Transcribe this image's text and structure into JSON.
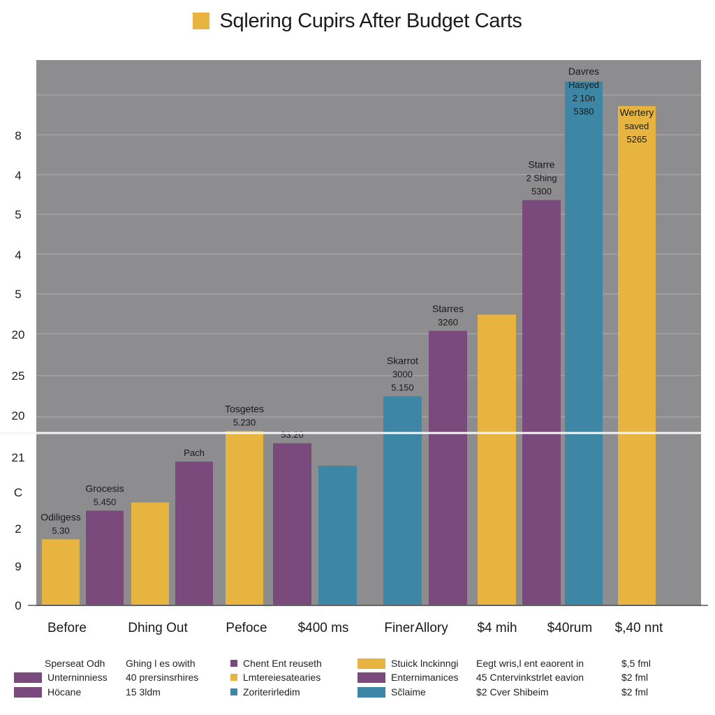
{
  "colors": {
    "yellow": "#e7b43f",
    "purple": "#7a4a7c",
    "blue": "#3e86a6",
    "plot_bg": "#8d8d8f",
    "grid": "#a4a4a7",
    "axis_text": "#1c1c1c",
    "bar_label": "#1a1a1a"
  },
  "chart_data": {
    "type": "bar",
    "title": "Sqlering Cupirs  After Budget Carts",
    "y_tick_labels": [
      "0",
      "9",
      "2",
      "C",
      "21",
      "20",
      "25",
      "20",
      "5",
      "4",
      "5",
      "4",
      "8"
    ],
    "x_group_labels": [
      "Before",
      "Dhing Out",
      "Pefoce",
      "$400 ms",
      "Finer",
      "Allory",
      "$4 mih",
      "$40rum",
      "$,40 nnt"
    ],
    "value_scale": [
      0,
      13.6
    ],
    "grid": true,
    "highlight_line_value": 4.2,
    "bars": [
      {
        "color": "yellow",
        "value": 1.6,
        "labels": [
          "Odiligess",
          "5.30"
        ]
      },
      {
        "color": "purple",
        "value": 2.3,
        "labels": [
          "Grocesis",
          "5.450"
        ]
      },
      {
        "color": "yellow",
        "value": 2.5,
        "labels": []
      },
      {
        "color": "purple",
        "value": 3.5,
        "labels": [
          "Pach"
        ]
      },
      {
        "color": "yellow",
        "value": 4.25,
        "labels": [
          "Tosgetes",
          "5.230"
        ]
      },
      {
        "color": "purple",
        "value": 3.95,
        "labels": [
          "53.20"
        ]
      },
      {
        "color": "blue",
        "value": 3.4,
        "labels": []
      },
      {
        "color": "blue",
        "value": 5.1,
        "labels": [
          "Skarrot",
          "3000",
          "5.150"
        ]
      },
      {
        "color": "purple",
        "value": 6.7,
        "labels": [
          "Starres",
          "3260"
        ]
      },
      {
        "color": "yellow",
        "value": 7.1,
        "labels": []
      },
      {
        "color": "purple",
        "value": 9.9,
        "labels": [
          "Starre",
          "2 Shing",
          "5300"
        ]
      },
      {
        "color": "blue",
        "value": 12.8,
        "labels": [
          "Davres",
          "Hasyed",
          "2 10n",
          "5380"
        ]
      },
      {
        "color": "yellow",
        "value": 12.2,
        "labels": [
          "Wertery",
          "saved",
          "5265"
        ]
      }
    ]
  },
  "legend": [
    {
      "color": "",
      "text": "Sperseat Odh"
    },
    {
      "color": "",
      "text": "Ghing l es owith"
    },
    {
      "color": "purple",
      "text": "Chent Ent reuseth"
    },
    {
      "color": "yellow",
      "text": "Stuick lnckinngi"
    },
    {
      "color": "",
      "text": "Eegt wris,l ent eaorent in"
    },
    {
      "color": "",
      "text": "$,5 fml"
    },
    {
      "color": "purple",
      "text": "Unterninniess"
    },
    {
      "color": "",
      "text": "40 prersinsrhires"
    },
    {
      "color": "yellow",
      "text": "Lmtereiesatearies"
    },
    {
      "color": "purple",
      "text": "Enternimanices"
    },
    {
      "color": "",
      "text": "45 Cntervinkstrlet eavion"
    },
    {
      "color": "",
      "text": "$2 fml"
    },
    {
      "color": "purple",
      "text": "Höcane"
    },
    {
      "color": "",
      "text": "15 3ldm"
    },
    {
      "color": "blue",
      "text": "Zoriterirledim"
    },
    {
      "color": "blue",
      "text": "Sčlaime"
    },
    {
      "color": "",
      "text": "$2 Cver Shibeim"
    },
    {
      "color": "",
      "text": "$2 fml"
    }
  ]
}
